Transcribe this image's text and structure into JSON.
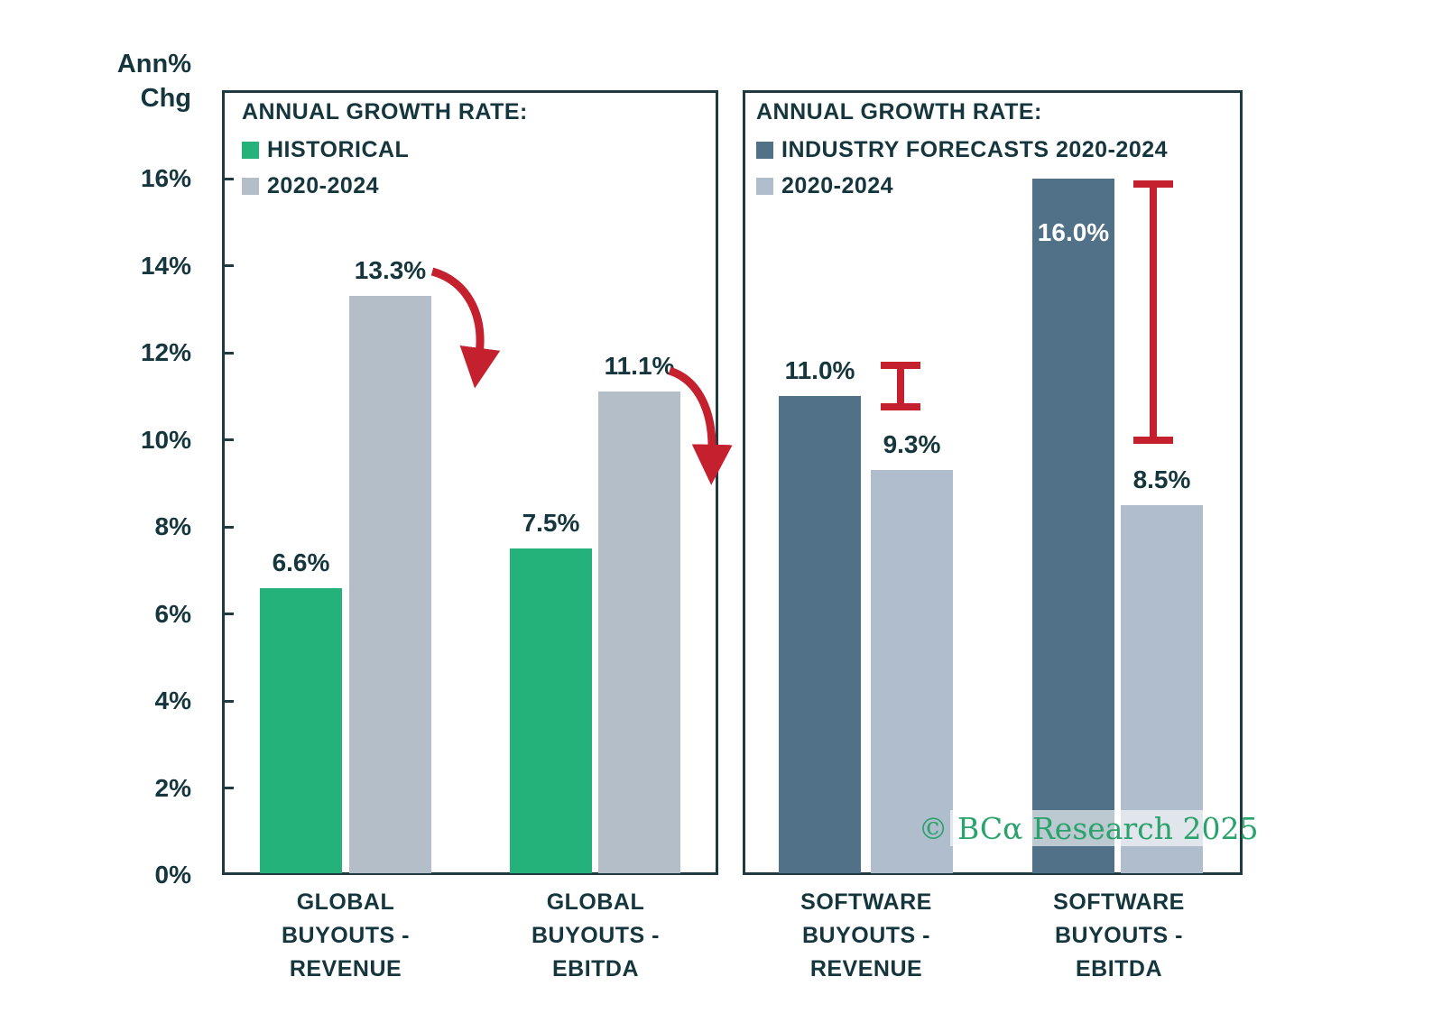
{
  "chart_data": {
    "type": "bar",
    "ylabel_lines": [
      "Ann%",
      "Chg"
    ],
    "ylim": [
      0,
      16
    ],
    "grid": false,
    "yticks": [
      {
        "value": 0,
        "label": "0%"
      },
      {
        "value": 2,
        "label": "2%"
      },
      {
        "value": 4,
        "label": "4%"
      },
      {
        "value": 6,
        "label": "6%"
      },
      {
        "value": 8,
        "label": "8%"
      },
      {
        "value": 10,
        "label": "10%"
      },
      {
        "value": 12,
        "label": "12%"
      },
      {
        "value": 14,
        "label": "14%"
      },
      {
        "value": 16,
        "label": "16%"
      }
    ],
    "panels": [
      {
        "legend_title": "ANNUAL GROWTH RATE:",
        "series": [
          {
            "name": "HISTORICAL",
            "color": "#25b17a"
          },
          {
            "name": "2020-2024",
            "color": "#b4bec8"
          }
        ],
        "groups": [
          {
            "label_lines": [
              "GLOBAL",
              "BUYOUTS -",
              "REVENUE"
            ],
            "bars": [
              {
                "series": "HISTORICAL",
                "value": 6.6
              },
              {
                "series": "2020-2024",
                "value": 13.3
              }
            ]
          },
          {
            "label_lines": [
              "GLOBAL",
              "BUYOUTS -",
              "EBITDA"
            ],
            "bars": [
              {
                "series": "HISTORICAL",
                "value": 7.5
              },
              {
                "series": "2020-2024",
                "value": 11.1
              }
            ]
          }
        ]
      },
      {
        "legend_title": "ANNUAL GROWTH RATE:",
        "series": [
          {
            "name": "INDUSTRY FORECASTS 2020-2024",
            "color": "#507187"
          },
          {
            "name": "2020-2024",
            "color": "#b0bdcc"
          }
        ],
        "groups": [
          {
            "label_lines": [
              "SOFTWARE",
              "BUYOUTS -",
              "REVENUE"
            ],
            "bars": [
              {
                "series": "INDUSTRY FORECASTS 2020-2024",
                "value": 11.0
              },
              {
                "series": "2020-2024",
                "value": 9.3
              }
            ]
          },
          {
            "label_lines": [
              "SOFTWARE",
              "BUYOUTS -",
              "EBITDA"
            ],
            "bars": [
              {
                "series": "INDUSTRY FORECASTS 2020-2024",
                "value": 16.0,
                "label_inside": true
              },
              {
                "series": "2020-2024",
                "value": 8.5
              }
            ]
          }
        ]
      }
    ],
    "annotations": {
      "color": "#c4202e",
      "arrows": [
        "decline-arrow-global-revenue",
        "decline-arrow-global-ebitda"
      ],
      "gap_brackets": [
        "forecast-gap-software-revenue",
        "forecast-gap-software-ebitda"
      ]
    },
    "watermark": {
      "text": "© BCα Research 2025",
      "color": "#2aa26b"
    }
  },
  "colors": {
    "background": "#ffffff",
    "text": "#16363e",
    "border": "#203a42",
    "annotation_red": "#c4202e"
  }
}
